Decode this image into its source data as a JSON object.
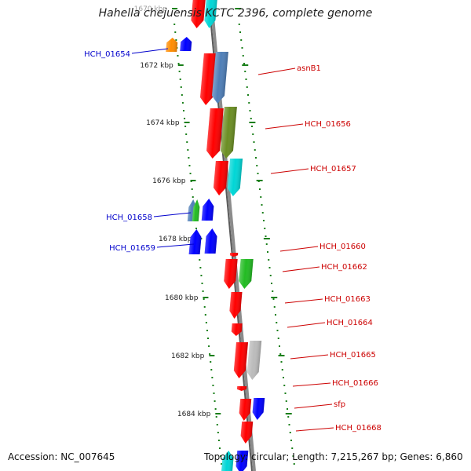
{
  "title": "Hahella chejuensis KCTC 2396, complete genome",
  "accession": "Accession: NC_007645",
  "topology": "Topology: circular; Length: 7,215,267 bp; Genes: 6,860",
  "colors": {
    "backbone": "#8c8c8c",
    "ticks": "#1a7f1a",
    "minus_label": "#0000cc",
    "plus_label": "#cc0000",
    "red": "#ff0000",
    "blue": "#0000ff",
    "steelblue": "#4f7fb8",
    "olive": "#6b8e23",
    "cyan": "#00d6d6",
    "green": "#22bb22",
    "gray": "#bbbbbb",
    "orange": "#ff8c00"
  },
  "ticks": [
    {
      "label": "1670 kbp"
    },
    {
      "label": "1672 kbp"
    },
    {
      "label": "1674 kbp"
    },
    {
      "label": "1676 kbp"
    },
    {
      "label": "1678 kbp"
    },
    {
      "label": "1680 kbp"
    },
    {
      "label": "1682 kbp"
    },
    {
      "label": "1684 kbp"
    }
  ],
  "genes_minus": [
    {
      "name": "HCH_01654"
    },
    {
      "name": "HCH_01658"
    },
    {
      "name": "HCH_01659"
    }
  ],
  "genes_plus": [
    {
      "name": "asnB1"
    },
    {
      "name": "HCH_01656"
    },
    {
      "name": "HCH_01657"
    },
    {
      "name": "HCH_01660"
    },
    {
      "name": "HCH_01662"
    },
    {
      "name": "HCH_01663"
    },
    {
      "name": "HCH_01664"
    },
    {
      "name": "HCH_01665"
    },
    {
      "name": "HCH_01666"
    },
    {
      "name": "sfp"
    },
    {
      "name": "HCH_01668"
    }
  ]
}
